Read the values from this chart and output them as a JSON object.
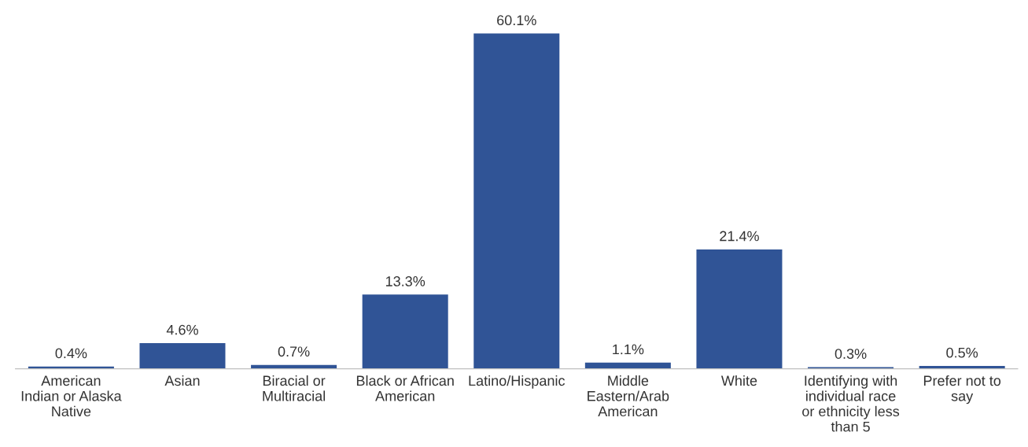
{
  "chart_data": {
    "type": "bar",
    "categories": [
      "American\nIndian or Alaska\nNative",
      "Asian",
      "Biracial or\nMultiracial",
      "Black or African\nAmerican",
      "Latino/Hispanic",
      "Middle\nEastern/Arab\nAmerican",
      "White",
      "Identifying with\nindividual race\nor ethnicity less\nthan 5",
      "Prefer not to\nsay"
    ],
    "values": [
      0.4,
      4.6,
      0.7,
      13.3,
      60.1,
      1.1,
      21.4,
      0.3,
      0.5
    ],
    "value_labels": [
      "0.4%",
      "4.6%",
      "0.7%",
      "13.3%",
      "60.1%",
      "1.1%",
      "21.4%",
      "0.3%",
      "0.5%"
    ],
    "color": "#305496",
    "legend": false
  }
}
